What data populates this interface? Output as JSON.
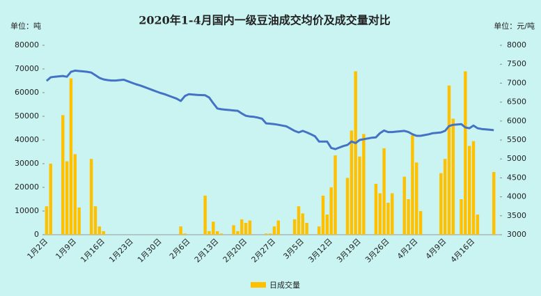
{
  "chart_data": {
    "type": "bar-line",
    "title": "2020年1-4月国内一级豆油成交均价及成交量对比",
    "y_unit": "单位：吨",
    "y2_unit": "单位：元/吨",
    "categories": [
      "1月2日",
      null,
      null,
      null,
      null,
      null,
      null,
      "1月9日",
      null,
      null,
      null,
      null,
      null,
      null,
      "1月16日",
      null,
      null,
      null,
      null,
      null,
      null,
      "1月23日",
      null,
      null,
      null,
      null,
      null,
      null,
      "1月30日",
      null,
      null,
      null,
      null,
      null,
      null,
      "2月6日",
      null,
      null,
      null,
      null,
      null,
      null,
      "2月13日",
      null,
      null,
      null,
      null,
      null,
      null,
      "2月20日",
      null,
      null,
      null,
      null,
      null,
      null,
      "2月27日",
      null,
      null,
      null,
      null,
      null,
      null,
      "3月5日",
      null,
      null,
      null,
      null,
      null,
      null,
      "3月12日",
      null,
      null,
      null,
      null,
      null,
      null,
      "3月19日",
      null,
      null,
      null,
      null,
      null,
      null,
      "3月26日",
      null,
      null,
      null,
      null,
      null,
      null,
      "4月2日",
      null,
      null,
      null,
      null,
      null,
      null,
      "4月9日",
      null,
      null,
      null,
      null,
      null,
      null,
      "4月16日",
      null,
      null,
      null,
      null,
      null,
      null
    ],
    "series": [
      {
        "name": "日成交量",
        "type": "bar",
        "color": "#ffc000",
        "values": [
          12000,
          30000,
          null,
          null,
          50500,
          31000,
          66000,
          34000,
          11500,
          null,
          null,
          32000,
          12000,
          3500,
          1500,
          null,
          null,
          null,
          null,
          null,
          null,
          null,
          null,
          null,
          null,
          null,
          null,
          null,
          null,
          null,
          null,
          null,
          null,
          3500,
          500,
          null,
          null,
          null,
          null,
          16500,
          1500,
          5500,
          1500,
          500,
          null,
          null,
          4000,
          1500,
          6500,
          5000,
          6000,
          null,
          null,
          null,
          500,
          500,
          3500,
          6000,
          null,
          null,
          null,
          6500,
          12000,
          9000,
          5000,
          null,
          null,
          3500,
          16500,
          8500,
          20000,
          33500,
          null,
          null,
          24000,
          44000,
          69000,
          33000,
          42500,
          null,
          null,
          21500,
          17500,
          36500,
          13500,
          17500,
          null,
          null,
          24500,
          15000,
          42000,
          30500,
          10000,
          null,
          null,
          null,
          null,
          26000,
          32000,
          63000,
          49000,
          null,
          15000,
          69000,
          37500,
          39500,
          8500,
          null,
          null,
          null,
          26500,
          null
        ]
      },
      {
        "type": "line",
        "axis": "y2",
        "color": "#4472c4",
        "values": [
          7060,
          7155,
          7170,
          7180,
          7190,
          7170,
          7300,
          7330,
          7320,
          7310,
          7300,
          7280,
          7210,
          7140,
          7100,
          7080,
          7070,
          7070,
          7080,
          7090,
          7050,
          7010,
          6970,
          6940,
          6900,
          6860,
          6820,
          6780,
          6740,
          6710,
          6670,
          6630,
          6590,
          6530,
          6660,
          6710,
          6700,
          6690,
          6685,
          6680,
          6620,
          6470,
          6330,
          6310,
          6300,
          6290,
          6280,
          6270,
          6200,
          6140,
          6120,
          6110,
          6090,
          6060,
          5940,
          5930,
          5920,
          5900,
          5880,
          5860,
          5800,
          5740,
          5700,
          5740,
          5700,
          5650,
          5600,
          5460,
          5460,
          5460,
          5290,
          5260,
          5300,
          5340,
          5370,
          5460,
          5420,
          5500,
          5520,
          5540,
          5560,
          5570,
          5680,
          5750,
          5710,
          5710,
          5720,
          5730,
          5740,
          5710,
          5650,
          5610,
          5610,
          5630,
          5650,
          5680,
          5690,
          5700,
          5740,
          5870,
          5900,
          5910,
          5920,
          5830,
          5810,
          5880,
          5810,
          5790,
          5780,
          5770,
          5760,
          null
        ]
      }
    ],
    "ylim": [
      0,
      80000
    ],
    "yticks": [
      0,
      10000,
      20000,
      30000,
      40000,
      50000,
      60000,
      70000,
      80000
    ],
    "y2lim": [
      3000,
      8000
    ],
    "y2ticks": [
      3000,
      3500,
      4000,
      4500,
      5000,
      5500,
      6000,
      6500,
      7000,
      7500,
      8000
    ],
    "legend": "bottom"
  }
}
